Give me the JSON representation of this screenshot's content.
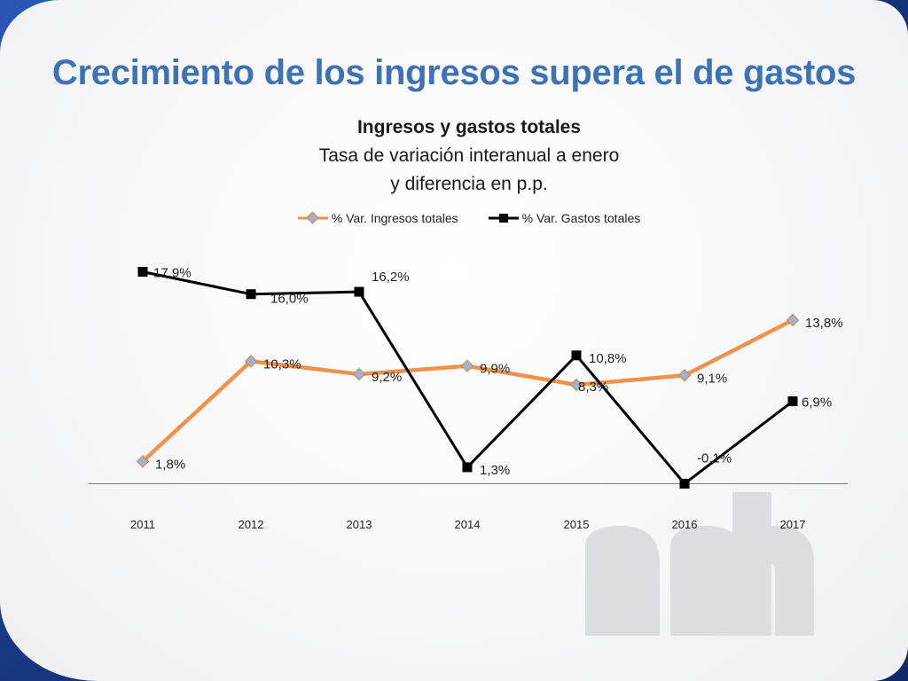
{
  "title": "Crecimiento de los ingresos supera el de gastos",
  "colors": {
    "ingresos_line": "#f0914a",
    "ingresos_marker": "#9bb3d4",
    "gastos_line": "#000000",
    "slide_title": "#3d73b6",
    "frame": "#1e3f8c"
  },
  "chart_data": {
    "type": "line",
    "title": "Ingresos y gastos totales",
    "subtitle": [
      "Tasa de variación interanual a enero",
      "y diferencia en p.p."
    ],
    "categories": [
      "2011",
      "2012",
      "2013",
      "2014",
      "2015",
      "2016",
      "2017"
    ],
    "series": [
      {
        "name": "% Var. Ingresos totales",
        "values": [
          1.8,
          10.3,
          9.2,
          9.9,
          8.3,
          9.1,
          13.8
        ],
        "labels": [
          "1,8%",
          "10,3%",
          "9,2%",
          "9,9%",
          "8,3%",
          "9,1%",
          "13,8%"
        ],
        "marker": "diamond"
      },
      {
        "name": "% Var. Gastos totales",
        "values": [
          17.9,
          16.0,
          16.2,
          1.3,
          10.8,
          -0.1,
          6.9
        ],
        "labels": [
          "17,9%",
          "16,0%",
          "16,2%",
          "1,3%",
          "10,8%",
          "-0,1%",
          "6,9%"
        ],
        "marker": "square"
      }
    ],
    "xlabel": "",
    "ylabel": "",
    "ylim": [
      -0.1,
      17.9
    ],
    "grid": false,
    "legend": "top"
  }
}
